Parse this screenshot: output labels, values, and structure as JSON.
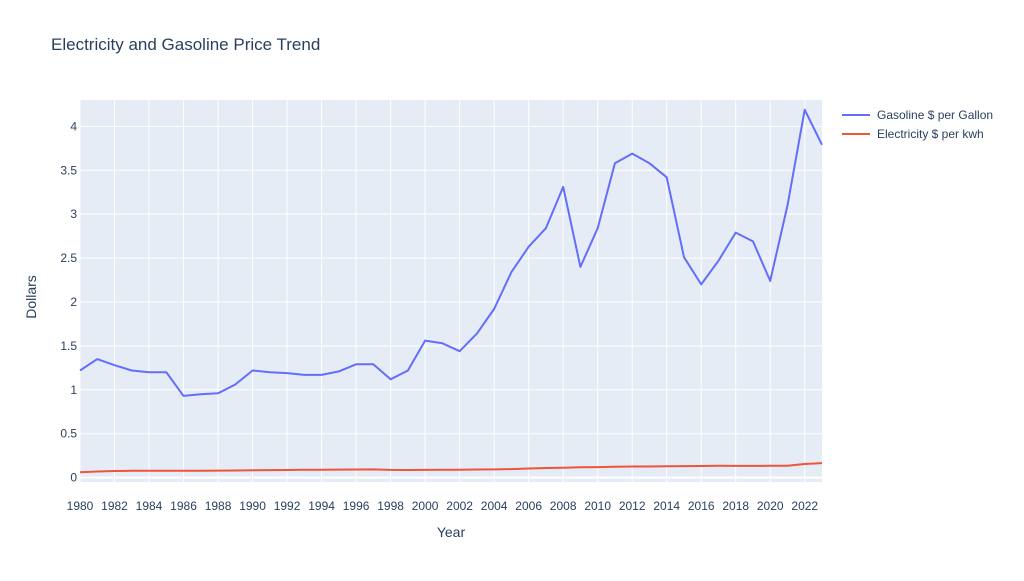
{
  "chart_data": {
    "type": "line",
    "title": "Electricity and Gasoline Price Trend",
    "xlabel": "Year",
    "ylabel": "Dollars",
    "xlim": [
      1980,
      2023
    ],
    "ylim": [
      -0.05,
      4.3
    ],
    "x_ticks": [
      1980,
      1982,
      1984,
      1986,
      1988,
      1990,
      1992,
      1994,
      1996,
      1998,
      2000,
      2002,
      2004,
      2006,
      2008,
      2010,
      2012,
      2014,
      2016,
      2018,
      2020,
      2022
    ],
    "y_ticks": [
      0,
      0.5,
      1,
      1.5,
      2,
      2.5,
      3,
      3.5,
      4
    ],
    "y_tick_labels": [
      "0",
      "0.5",
      "1",
      "1.5",
      "2",
      "2.5",
      "3",
      "3.5",
      "4"
    ],
    "grid": true,
    "legend_position": "top-right outside",
    "x": [
      1980,
      1981,
      1982,
      1983,
      1984,
      1985,
      1986,
      1987,
      1988,
      1989,
      1990,
      1991,
      1992,
      1993,
      1994,
      1995,
      1996,
      1997,
      1998,
      1999,
      2000,
      2001,
      2002,
      2003,
      2004,
      2005,
      2006,
      2007,
      2008,
      2009,
      2010,
      2011,
      2012,
      2013,
      2014,
      2015,
      2016,
      2017,
      2018,
      2019,
      2020,
      2021,
      2022,
      2023
    ],
    "series": [
      {
        "name": "Gasoline $ per Gallon",
        "color": "#636efa",
        "values": [
          1.22,
          1.35,
          1.28,
          1.22,
          1.2,
          1.2,
          0.93,
          0.95,
          0.96,
          1.06,
          1.22,
          1.2,
          1.19,
          1.17,
          1.17,
          1.21,
          1.29,
          1.29,
          1.12,
          1.22,
          1.56,
          1.53,
          1.44,
          1.64,
          1.92,
          2.34,
          2.63,
          2.84,
          3.31,
          2.4,
          2.84,
          3.58,
          3.69,
          3.58,
          3.42,
          2.51,
          2.2,
          2.47,
          2.79,
          2.69,
          2.24,
          3.1,
          4.19,
          3.79
        ]
      },
      {
        "name": "Electricity $ per kwh",
        "color": "#ef553b",
        "values": [
          0.06,
          0.07,
          0.075,
          0.077,
          0.078,
          0.079,
          0.078,
          0.079,
          0.08,
          0.081,
          0.083,
          0.085,
          0.087,
          0.089,
          0.09,
          0.091,
          0.092,
          0.093,
          0.088,
          0.087,
          0.088,
          0.089,
          0.089,
          0.092,
          0.094,
          0.097,
          0.104,
          0.109,
          0.112,
          0.117,
          0.12,
          0.124,
          0.126,
          0.127,
          0.129,
          0.131,
          0.132,
          0.134,
          0.133,
          0.133,
          0.134,
          0.136,
          0.155,
          0.165
        ]
      }
    ]
  },
  "colors": {
    "plot_background": "#e5ecf6",
    "grid": "#ffffff",
    "text": "#2a3f5f"
  }
}
